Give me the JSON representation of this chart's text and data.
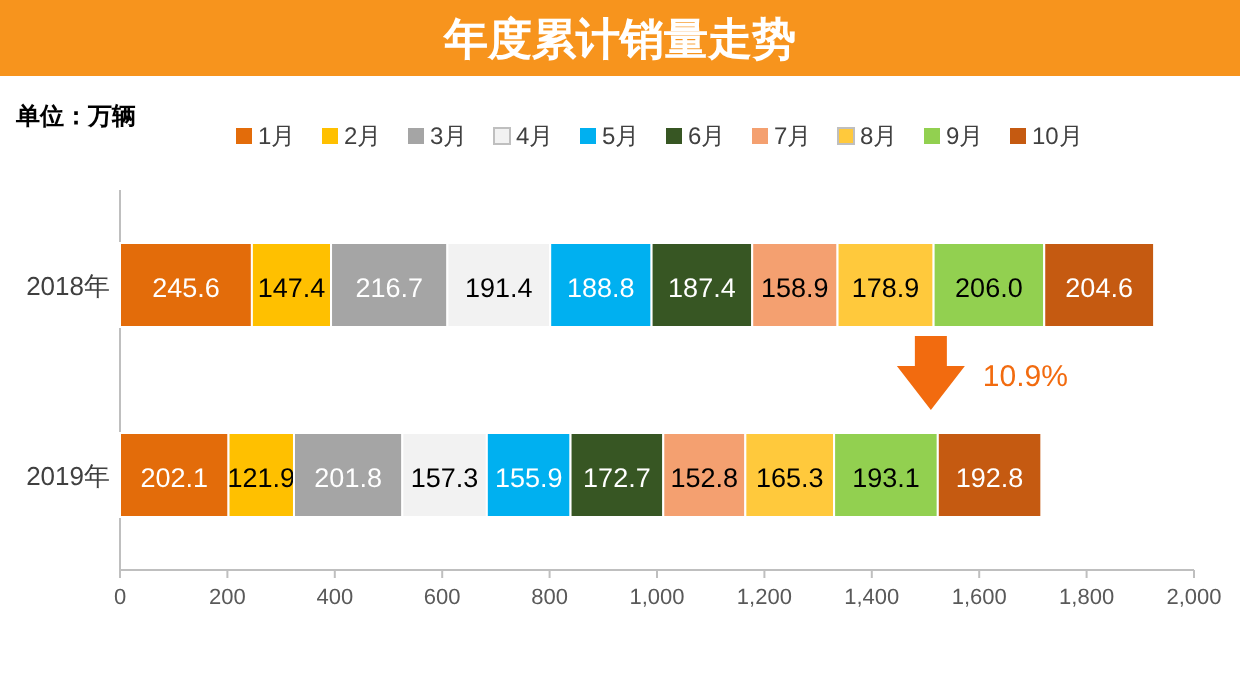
{
  "chart_data": {
    "type": "bar",
    "orientation": "horizontal",
    "stacked": true,
    "title": "年度累计销量走势",
    "annotations": [
      "单位：万辆",
      "10.9%"
    ],
    "categories": [
      "2018年",
      "2019年"
    ],
    "series": [
      {
        "name": "1月",
        "color": "#e36c0a",
        "values": [
          245.6,
          202.1
        ],
        "value_labels": [
          "245.6",
          "202.1"
        ]
      },
      {
        "name": "2月",
        "color": "#ffc000",
        "values": [
          147.4,
          121.9
        ],
        "value_labels": [
          "147.4",
          "121.9"
        ]
      },
      {
        "name": "3月",
        "color": "#a5a5a5",
        "values": [
          216.7,
          201.8
        ],
        "value_labels": [
          "216.7",
          "201.8"
        ]
      },
      {
        "name": "4月",
        "color": "#f2f2f2",
        "values": [
          191.4,
          157.3
        ],
        "value_labels": [
          "191.4",
          "157.3"
        ]
      },
      {
        "name": "5月",
        "color": "#00b0f0",
        "values": [
          188.8,
          155.9
        ],
        "value_labels": [
          "188.8",
          "155.9"
        ]
      },
      {
        "name": "6月",
        "color": "#375623",
        "values": [
          187.4,
          172.7
        ],
        "value_labels": [
          "187.4",
          "172.7"
        ]
      },
      {
        "name": "7月",
        "color": "#f4a070",
        "values": [
          158.9,
          152.8
        ],
        "value_labels": [
          "158.9",
          "152.8"
        ]
      },
      {
        "name": "8月",
        "color": "#ffc93c",
        "values": [
          178.9,
          165.3
        ],
        "value_labels": [
          "178.9",
          "165.3"
        ]
      },
      {
        "name": "9月",
        "color": "#92d050",
        "values": [
          206.0,
          193.1
        ],
        "value_labels": [
          "206.0",
          "193.1"
        ]
      },
      {
        "name": "10月",
        "color": "#c55a11",
        "values": [
          204.6,
          192.8
        ],
        "value_labels": [
          "204.6",
          "192.8"
        ]
      }
    ],
    "xlim": [
      0,
      2000
    ],
    "xticks": [
      0,
      200,
      400,
      600,
      800,
      {
        "value": 1000,
        "label": "1,000"
      },
      {
        "value": 1200,
        "label": "1,200"
      },
      {
        "value": 1400,
        "label": "1,400"
      },
      {
        "value": 1600,
        "label": "1,600"
      },
      {
        "value": 1800,
        "label": "1,800"
      },
      {
        "value": 2000,
        "label": "2,000"
      }
    ],
    "legend": "top"
  }
}
